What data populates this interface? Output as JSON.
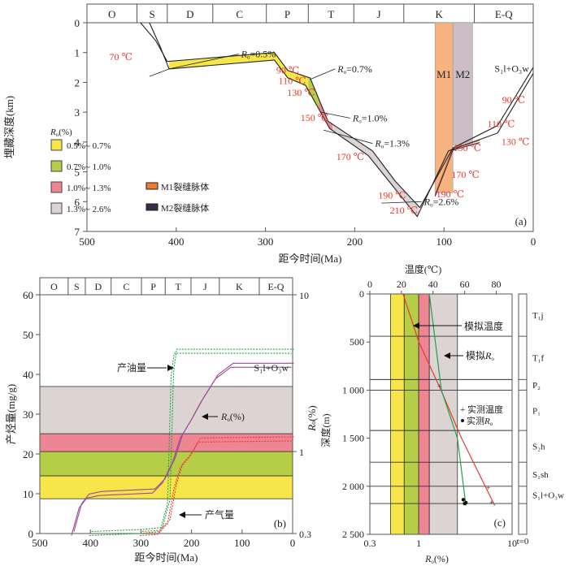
{
  "colors": {
    "yellow": "#f7e64a",
    "green": "#b6cd48",
    "pink": "#ee8593",
    "gray": "#dcd4d3",
    "m1": "#f6b37f",
    "m2": "#cdbec6",
    "m1_legend": "#ef7b2e",
    "m2_legend": "#3a2c4a",
    "temp_red": "#e8392b",
    "oil_green": "#20a04a",
    "gas_red": "#e8392b",
    "ro_purple": "#9b4a98"
  },
  "chart_data": [
    {
      "id": "a",
      "type": "line",
      "panel_label": "(a)",
      "xlabel": "距今时间(Ma)",
      "ylabel": "埋藏深度(km)",
      "xlim": [
        500,
        0
      ],
      "ylim": [
        0,
        7
      ],
      "xticks": [
        "500",
        "400",
        "300",
        "200",
        "100",
        "0"
      ],
      "yticks": [
        "0",
        "1",
        "2",
        "3",
        "4",
        "5",
        "6",
        "7"
      ],
      "periods": [
        {
          "name": "O",
          "start": 500,
          "end": 444
        },
        {
          "name": "S",
          "start": 444,
          "end": 410
        },
        {
          "name": "D",
          "start": 410,
          "end": 359
        },
        {
          "name": "C",
          "start": 359,
          "end": 299
        },
        {
          "name": "P",
          "start": 299,
          "end": 252
        },
        {
          "name": "T",
          "start": 252,
          "end": 201
        },
        {
          "name": "J",
          "start": 201,
          "end": 145
        },
        {
          "name": "K",
          "start": 145,
          "end": 66
        },
        {
          "name": "E-Q",
          "start": 66,
          "end": 0
        }
      ],
      "burial_top": [
        [
          440,
          0
        ],
        [
          423,
          0.6
        ],
        [
          410,
          1.3
        ],
        [
          290,
          1.0
        ],
        [
          275,
          1.6
        ],
        [
          250,
          1.85
        ],
        [
          230,
          3.3
        ],
        [
          180,
          4.3
        ],
        [
          155,
          5.3
        ],
        [
          127,
          6.2
        ],
        [
          90,
          4.2
        ],
        [
          40,
          3.45
        ],
        [
          0,
          1.5
        ]
      ],
      "burial_bottom": [
        [
          430,
          0
        ],
        [
          418,
          0.8
        ],
        [
          408,
          1.55
        ],
        [
          290,
          1.25
        ],
        [
          275,
          1.85
        ],
        [
          255,
          2.1
        ],
        [
          228,
          3.55
        ],
        [
          185,
          4.45
        ],
        [
          158,
          5.45
        ],
        [
          130,
          6.5
        ],
        [
          95,
          4.3
        ],
        [
          40,
          3.7
        ],
        [
          0,
          1.7
        ]
      ],
      "ro_zones": [
        {
          "label": "0.5%~ 0.7%",
          "from": 408,
          "to": 252,
          "color_key": "yellow"
        },
        {
          "label": "0.7%~ 1.0%",
          "from": 252,
          "to": 240,
          "color_key": "green"
        },
        {
          "label": "1.0%~ 1.3%",
          "from": 240,
          "to": 225,
          "color_key": "pink"
        },
        {
          "label": "1.3%~ 2.6%",
          "from": 225,
          "to": 128,
          "color_key": "gray"
        }
      ],
      "fracture_veins": [
        {
          "name": "M1",
          "start": 110,
          "end": 90,
          "top": 0,
          "bottom": 5.7,
          "legend": "M1裂缝脉体",
          "color_key": "m1"
        },
        {
          "name": "M2",
          "start": 90,
          "end": 68,
          "top": 0,
          "bottom": 4.1,
          "legend": "M2裂缝脉体",
          "color_key": "m2"
        }
      ],
      "ro_annotations": [
        {
          "text": "0.5%",
          "x": 245,
          "y": 1.25
        },
        {
          "text": "0.7%",
          "x": 215,
          "y": 2.05
        },
        {
          "text": "1.0%",
          "x": 200,
          "y": 3.2
        },
        {
          "text": "1.3%",
          "x": 172,
          "y": 4.0
        },
        {
          "text": "2.6%",
          "x": 120,
          "y": 6.1
        }
      ],
      "temperature_labels": [
        {
          "text": "70 ℃",
          "x": 462,
          "y": 1.25
        },
        {
          "text": "90 ℃",
          "x": 275,
          "y": 1.7
        },
        {
          "text": "110 ℃",
          "x": 270,
          "y": 2.05
        },
        {
          "text": "130 ℃",
          "x": 260,
          "y": 2.45
        },
        {
          "text": "150 ℃",
          "x": 245,
          "y": 3.3
        },
        {
          "text": "170 ℃",
          "x": 205,
          "y": 4.6
        },
        {
          "text": "190 ℃",
          "x": 158,
          "y": 5.9
        },
        {
          "text": "210 ℃",
          "x": 145,
          "y": 6.4
        },
        {
          "text": "190 ℃",
          "x": 93,
          "y": 5.85
        },
        {
          "text": "170 ℃",
          "x": 76,
          "y": 5.2
        },
        {
          "text": "150 ℃",
          "x": 74,
          "y": 4.3
        },
        {
          "text": "130 ℃",
          "x": 20,
          "y": 4.1
        },
        {
          "text": "110 ℃",
          "x": 36,
          "y": 3.5
        },
        {
          "text": "90 ℃",
          "x": 22,
          "y": 2.7
        }
      ],
      "formation_label": "S₁l+O₃w",
      "legend_title": "Rₒ(%)",
      "legend_placement": "bottom-left"
    },
    {
      "id": "b",
      "type": "line",
      "panel_label": "(b)",
      "xlabel": "距今时间(Ma)",
      "ylabel_left": "产烃量(mg/g)",
      "ylabel_right": "Rₒ(%)",
      "xlim": [
        500,
        0
      ],
      "ylim_left": [
        0,
        60
      ],
      "ylim_right": [
        0.3,
        10
      ],
      "yscale_right": "log",
      "xticks": [
        "500",
        "400",
        "300",
        "200",
        "100",
        "0"
      ],
      "yticks_left": [
        "0",
        "10",
        "20",
        "30",
        "40",
        "50",
        "60"
      ],
      "yticks_right": [
        "0.3",
        "1",
        "10"
      ],
      "periods": [
        "O",
        "S",
        "D",
        "C",
        "P",
        "T",
        "J",
        "K",
        "E-Q"
      ],
      "ro_bands": [
        {
          "from": 0.5,
          "to": 0.7,
          "color_key": "yellow"
        },
        {
          "from": 0.7,
          "to": 1.0,
          "color_key": "green"
        },
        {
          "from": 1.0,
          "to": 1.3,
          "color_key": "pink"
        },
        {
          "from": 1.3,
          "to": 2.6,
          "color_key": "gray"
        }
      ],
      "series": [
        {
          "name": "产油量",
          "style": "dotted",
          "color_key": "oil_green",
          "points": [
            [
              400,
              0
            ],
            [
              300,
              0.5
            ],
            [
              260,
              1
            ],
            [
              245,
              8
            ],
            [
              238,
              40
            ],
            [
              232,
              45.8
            ],
            [
              0,
              45.8
            ]
          ]
        },
        {
          "name": "产气量",
          "style": "dotted",
          "color_key": "gas_red",
          "points": [
            [
              300,
              0
            ],
            [
              265,
              0.3
            ],
            [
              245,
              3
            ],
            [
              232,
              12
            ],
            [
              220,
              17
            ],
            [
              200,
              20
            ],
            [
              185,
              23.5
            ],
            [
              0,
              23.8
            ]
          ]
        },
        {
          "name": "Rₒ(%)",
          "style": "double",
          "color_key": "ro_purple",
          "points": [
            [
              435,
              0.3
            ],
            [
              420,
              0.45
            ],
            [
              405,
              0.52
            ],
            [
              380,
              0.54
            ],
            [
              275,
              0.56
            ],
            [
              255,
              0.65
            ],
            [
              235,
              0.88
            ],
            [
              220,
              1.25
            ],
            [
              200,
              1.6
            ],
            [
              180,
              2.1
            ],
            [
              150,
              3.0
            ],
            [
              120,
              3.55
            ],
            [
              0,
              3.55
            ]
          ]
        }
      ],
      "annotations": [
        "产油量",
        "Rₒ(%)",
        "产气量",
        "S₁l+O₃w"
      ]
    },
    {
      "id": "c",
      "type": "line",
      "panel_label": "(c)",
      "xlabel_top": "温度(℃)",
      "xlabel_bottom": "Rₒ(%)",
      "ylabel": "深度(m)",
      "xlim_top": [
        0,
        90
      ],
      "xlim_bottom": [
        0.3,
        10
      ],
      "xscale_bottom": "log",
      "ylim": [
        0,
        2500
      ],
      "xticks_top": [
        "0",
        "20",
        "40",
        "60",
        "80"
      ],
      "xticks_bottom": [
        "0.3",
        "1",
        "10"
      ],
      "yticks": [
        "0",
        "500",
        "1 000",
        "1 500",
        "2 000",
        "2 500"
      ],
      "ro_bands": [
        {
          "from": 0.5,
          "to": 0.7,
          "color_key": "yellow"
        },
        {
          "from": 0.7,
          "to": 1.0,
          "color_key": "green"
        },
        {
          "from": 1.0,
          "to": 1.3,
          "color_key": "pink"
        },
        {
          "from": 1.3,
          "to": 2.6,
          "color_key": "gray"
        }
      ],
      "strata": [
        {
          "name": "T₁j",
          "top": 0,
          "bottom": 440
        },
        {
          "name": "T₁f",
          "top": 440,
          "bottom": 890
        },
        {
          "name": "P₂",
          "top": 890,
          "bottom": 1000
        },
        {
          "name": "P₁",
          "top": 1000,
          "bottom": 1420
        },
        {
          "name": "S₂h",
          "top": 1420,
          "bottom": 1750
        },
        {
          "name": "S₁sh",
          "top": 1750,
          "bottom": 2000
        },
        {
          "name": "S₁l+O₃w",
          "top": 2000,
          "bottom": 2180
        },
        {
          "name": "",
          "top": 2180,
          "bottom": 2500
        }
      ],
      "series": [
        {
          "name": "模拟温度",
          "axis": "top",
          "color_key": "temp_red",
          "points": [
            [
              21,
              0
            ],
            [
              31,
              500
            ],
            [
              45,
              1000
            ],
            [
              58,
              1500
            ],
            [
              79,
              2200
            ]
          ]
        },
        {
          "name": "模拟Rₒ",
          "axis": "bottom",
          "color_key": "oil_green",
          "points": [
            [
              1.3,
              0
            ],
            [
              1.75,
              1000
            ],
            [
              2.6,
              1500
            ],
            [
              3.2,
              2200
            ]
          ]
        }
      ],
      "measured_temperature": [
        [
          44,
          960
        ],
        [
          75,
          2020
        ],
        [
          77,
          2170
        ]
      ],
      "measured_ro": [
        [
          3.0,
          2140
        ],
        [
          3.1,
          2180
        ],
        [
          3.2,
          2170
        ]
      ],
      "annotations": {
        "sim_temp": "模拟温度",
        "sim_ro": "模拟Rₒ",
        "meas_temp": "实测温度",
        "meas_ro": "实测Rₒ",
        "t0": "t=0"
      }
    }
  ]
}
